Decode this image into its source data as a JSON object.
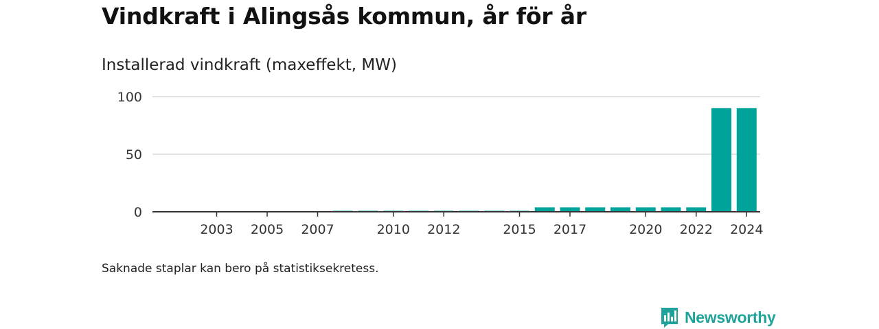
{
  "title": "Vindkraft i Alingsås kommun, år för år",
  "subtitle": "Installerad vindkraft (maxeffekt, MW)",
  "note": "Saknade staplar kan bero på statistiksekretess.",
  "brand": {
    "name": "Newsworthy",
    "icon": "newsworthy-logo-icon"
  },
  "colors": {
    "bar": "#00a39a",
    "grid": "#d9d9d9",
    "axis": "#333333",
    "brand": "#1fa39a"
  },
  "chart_data": {
    "type": "bar",
    "title": "Vindkraft i Alingsås kommun, år för år",
    "ylabel": "Installerad vindkraft (maxeffekt, MW)",
    "xlabel": "",
    "ylim": [
      0,
      100
    ],
    "yticks": [
      0,
      50,
      100
    ],
    "xticks": [
      2003,
      2005,
      2007,
      2010,
      2012,
      2015,
      2017,
      2020,
      2022,
      2024
    ],
    "grid": true,
    "categories": [
      2001,
      2002,
      2003,
      2004,
      2005,
      2006,
      2007,
      2008,
      2009,
      2010,
      2011,
      2012,
      2013,
      2014,
      2015,
      2016,
      2017,
      2018,
      2019,
      2020,
      2021,
      2022,
      2023,
      2024
    ],
    "values": [
      0,
      0,
      0,
      0,
      0,
      0,
      0,
      0.6,
      0.6,
      0.6,
      0.6,
      0.6,
      0.6,
      0.6,
      0.6,
      3.9,
      3.9,
      3.9,
      3.9,
      3.9,
      3.9,
      3.9,
      90,
      90
    ]
  }
}
